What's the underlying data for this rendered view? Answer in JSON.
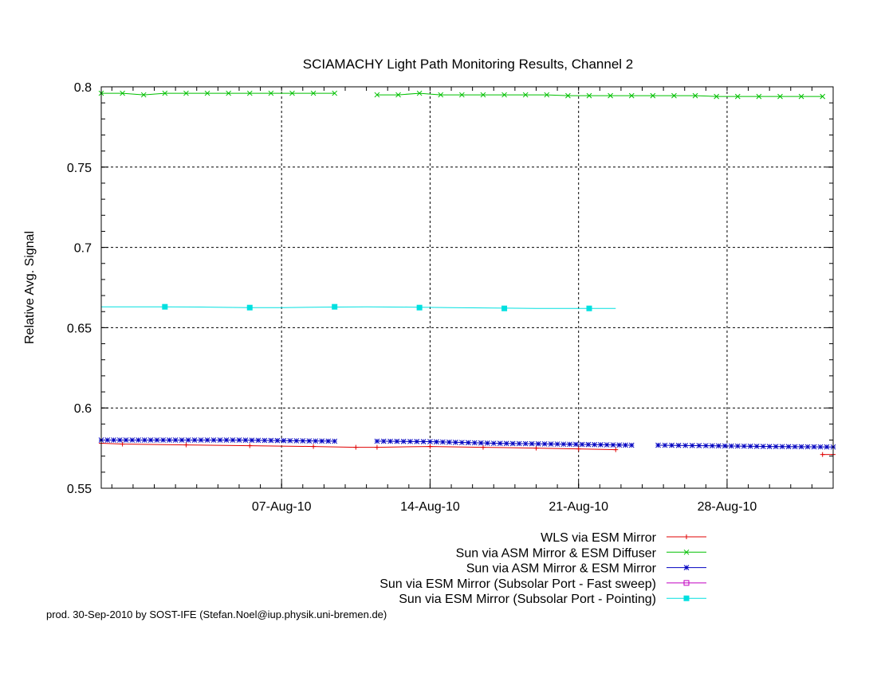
{
  "chart_data": {
    "type": "line",
    "title": "SCIAMACHY Light Path Monitoring Results, Channel 2",
    "xlabel": "",
    "ylabel": "Relative Avg. Signal",
    "x_axis_type": "date",
    "xlim": [
      "2010-07-29T12:00",
      "2010-09-02T00:00"
    ],
    "ylim": [
      0.55,
      0.8
    ],
    "x_ticks": [
      {
        "label": "07-Aug-10",
        "date": "2010-08-07"
      },
      {
        "label": "14-Aug-10",
        "date": "2010-08-14"
      },
      {
        "label": "21-Aug-10",
        "date": "2010-08-21"
      },
      {
        "label": "28-Aug-10",
        "date": "2010-08-28"
      }
    ],
    "y_ticks": [
      "0.55",
      "0.6",
      "0.65",
      "0.7",
      "0.75",
      "0.8"
    ],
    "grid": "major dashed",
    "legend_position": "below-right",
    "series": [
      {
        "name": "WLS via ESM Mirror",
        "color": "#e00000",
        "marker": "plus",
        "segments": [
          [
            [
              "2010-07-29T12:00",
              0.578
            ],
            [
              "2010-07-30T12:00",
              0.5775
            ],
            [
              "2010-08-02T12:00",
              0.577
            ],
            [
              "2010-08-05T12:00",
              0.5765
            ],
            [
              "2010-08-08T12:00",
              0.576
            ],
            [
              "2010-08-10T12:00",
              0.5755
            ],
            [
              "2010-08-11T12:00",
              0.5755
            ],
            [
              "2010-08-14T00:00",
              0.576
            ],
            [
              "2010-08-16T12:00",
              0.5755
            ],
            [
              "2010-08-19T00:00",
              0.575
            ],
            [
              "2010-08-21T00:00",
              0.5745
            ],
            [
              "2010-08-22T18:00",
              0.574
            ]
          ],
          [
            [
              "2010-09-01T12:00",
              0.571
            ],
            [
              "2010-09-02T00:00",
              0.571
            ]
          ]
        ]
      },
      {
        "name": "Sun via ASM Mirror & ESM Diffuser",
        "color": "#00c000",
        "marker": "cross",
        "segments": [
          [
            [
              "2010-07-29T12:00",
              0.796
            ],
            [
              "2010-07-30T12:00",
              0.796
            ],
            [
              "2010-07-31T12:00",
              0.795
            ],
            [
              "2010-08-01T12:00",
              0.796
            ],
            [
              "2010-08-02T12:00",
              0.796
            ],
            [
              "2010-08-03T12:00",
              0.796
            ],
            [
              "2010-08-04T12:00",
              0.796
            ],
            [
              "2010-08-05T12:00",
              0.796
            ],
            [
              "2010-08-06T12:00",
              0.796
            ],
            [
              "2010-08-07T12:00",
              0.796
            ],
            [
              "2010-08-08T12:00",
              0.796
            ],
            [
              "2010-08-09T12:00",
              0.796
            ]
          ],
          [
            [
              "2010-08-11T12:00",
              0.795
            ],
            [
              "2010-08-12T12:00",
              0.795
            ],
            [
              "2010-08-13T12:00",
              0.796
            ],
            [
              "2010-08-14T12:00",
              0.795
            ],
            [
              "2010-08-15T12:00",
              0.795
            ],
            [
              "2010-08-16T12:00",
              0.795
            ],
            [
              "2010-08-17T12:00",
              0.795
            ],
            [
              "2010-08-18T12:00",
              0.795
            ],
            [
              "2010-08-19T12:00",
              0.795
            ],
            [
              "2010-08-20T12:00",
              0.7945
            ],
            [
              "2010-08-21T12:00",
              0.7945
            ],
            [
              "2010-08-22T12:00",
              0.7945
            ],
            [
              "2010-08-23T12:00",
              0.7945
            ],
            [
              "2010-08-24T12:00",
              0.7945
            ],
            [
              "2010-08-25T12:00",
              0.7945
            ],
            [
              "2010-08-26T12:00",
              0.7945
            ],
            [
              "2010-08-27T12:00",
              0.794
            ],
            [
              "2010-08-28T12:00",
              0.794
            ],
            [
              "2010-08-29T12:00",
              0.794
            ],
            [
              "2010-08-30T12:00",
              0.794
            ],
            [
              "2010-08-31T12:00",
              0.794
            ],
            [
              "2010-09-01T12:00",
              0.794
            ]
          ]
        ]
      },
      {
        "name": "Sun via ASM Mirror & ESM Mirror",
        "color": "#0000c0",
        "marker": "star",
        "dense_markers": true,
        "segments": [
          [
            [
              "2010-07-29T12:00",
              0.58
            ],
            [
              "2010-08-02T00:00",
              0.58
            ],
            [
              "2010-08-05T00:00",
              0.58
            ],
            [
              "2010-08-08T00:00",
              0.5795
            ],
            [
              "2010-08-09T12:00",
              0.5793
            ]
          ],
          [
            [
              "2010-08-11T12:00",
              0.5793
            ],
            [
              "2010-08-14T00:00",
              0.579
            ],
            [
              "2010-08-17T00:00",
              0.578
            ],
            [
              "2010-08-20T00:00",
              0.5775
            ],
            [
              "2010-08-23T12:00",
              0.5768
            ]
          ],
          [
            [
              "2010-08-24T18:00",
              0.5768
            ],
            [
              "2010-08-27T00:00",
              0.5765
            ],
            [
              "2010-08-30T00:00",
              0.576
            ],
            [
              "2010-09-02T00:00",
              0.5757
            ]
          ]
        ]
      },
      {
        "name": "Sun via ESM Mirror (Subsolar Port - Fast sweep)",
        "color": "#c000c0",
        "marker": "square-open",
        "segments": []
      },
      {
        "name": "Sun via ESM Mirror (Subsolar Port - Pointing)",
        "color": "#00e0e0",
        "marker": "square-filled",
        "segments": [
          [
            [
              "2010-07-29T12:00",
              0.663
            ],
            [
              "2010-08-01T12:00",
              0.663
            ],
            [
              "2010-08-03T12:00",
              0.6628
            ],
            [
              "2010-08-05T12:00",
              0.6625
            ],
            [
              "2010-08-07T00:00",
              0.6625
            ],
            [
              "2010-08-09T00:00",
              0.6628
            ],
            [
              "2010-08-11T00:00",
              0.663
            ],
            [
              "2010-08-13T00:00",
              0.6628
            ],
            [
              "2010-08-15T00:00",
              0.6625
            ],
            [
              "2010-08-17T00:00",
              0.6622
            ],
            [
              "2010-08-19T00:00",
              0.662
            ],
            [
              "2010-08-21T00:00",
              0.662
            ],
            [
              "2010-08-22T18:00",
              0.662
            ]
          ]
        ],
        "marker_points": [
          [
            "2010-08-01T12:00",
            0.663
          ],
          [
            "2010-08-05T12:00",
            0.6625
          ],
          [
            "2010-08-09T12:00",
            0.663
          ],
          [
            "2010-08-13T12:00",
            0.6625
          ],
          [
            "2010-08-17T12:00",
            0.662
          ],
          [
            "2010-08-21T12:00",
            0.662
          ]
        ]
      }
    ]
  },
  "footer": "prod. 30-Sep-2010 by SOST-IFE (Stefan.Noel@iup.physik.uni-bremen.de)"
}
